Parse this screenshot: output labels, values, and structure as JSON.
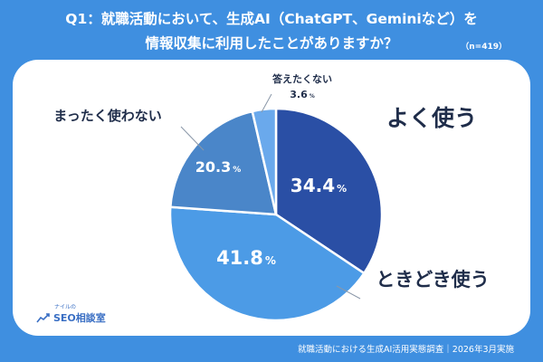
{
  "title_line1": "Q1：就職活動において、生成AI（ChatGPT、Geminiなど）を",
  "title_line2": "情報収集に利用したことがありますか？",
  "sample": "（n=419）",
  "footer": "就職活動における生成AI活用実態調査｜2026年3月実施",
  "logo": {
    "small": "ナイルの",
    "main": "SEO相談室"
  },
  "colors": {
    "background": "#3f8fe0",
    "often": "#2a4fa5",
    "sometimes": "#4c9be6",
    "rarely": "#4a86c9",
    "never": "#6aa9ec",
    "label_text": "#1f2d4a"
  },
  "chart_data": {
    "type": "pie",
    "title": "Q1：就職活動において、生成AI（ChatGPT、Geminiなど）を情報収集に利用したことがありますか？",
    "unit": "%",
    "slices": [
      {
        "label": "よく使う",
        "value": 34.4,
        "value_text": "34.4",
        "color": "#2a4fa5"
      },
      {
        "label": "ときどき使う",
        "value": 41.8,
        "value_text": "41.8",
        "color": "#4c9be6"
      },
      {
        "label": "まったく使わない",
        "value": 20.3,
        "value_text": "20.3",
        "color": "#4a86c9"
      },
      {
        "label": "答えたくない",
        "value": 3.6,
        "value_text": "3.6",
        "color": "#6aa9ec"
      }
    ]
  }
}
